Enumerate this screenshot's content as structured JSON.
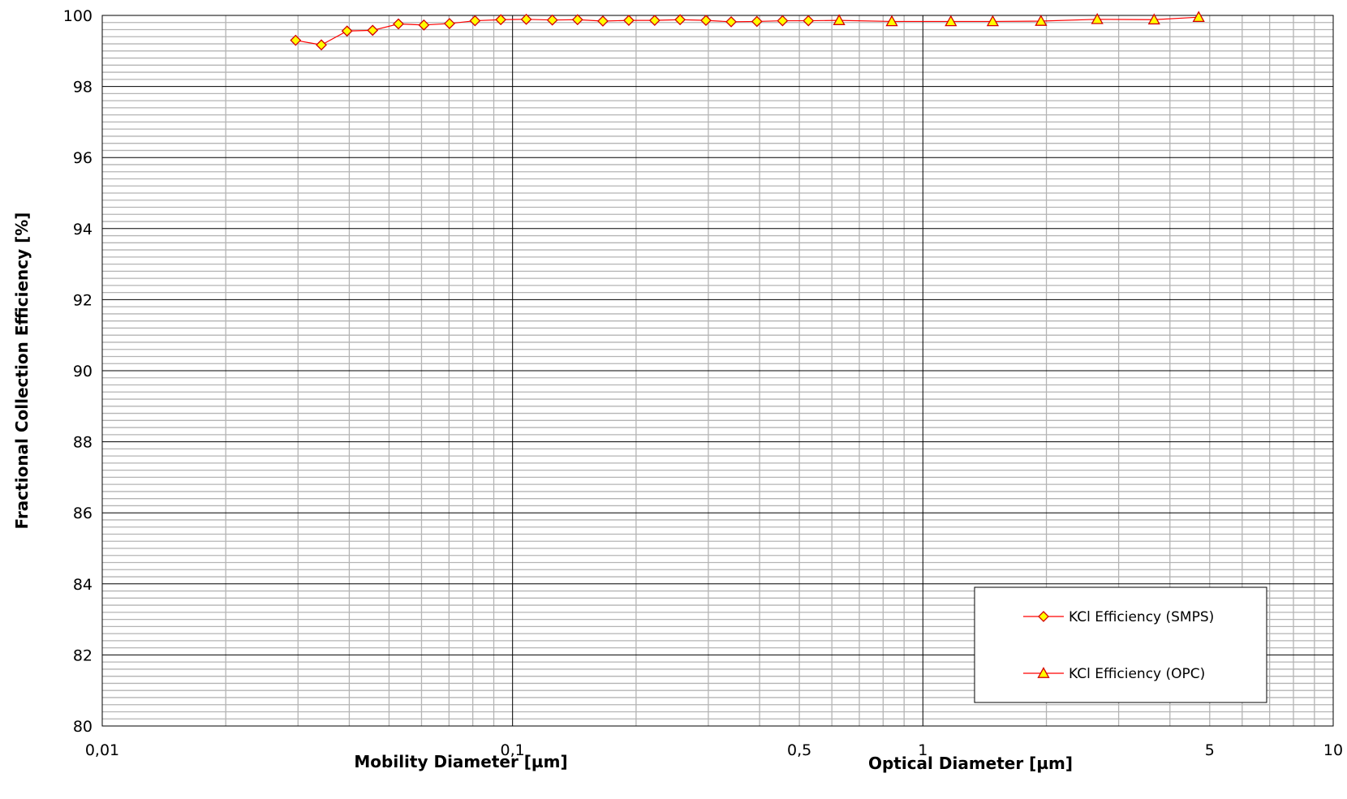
{
  "chart_data": {
    "type": "scatter",
    "title": "",
    "xscale": "log",
    "xlim": [
      0.01,
      10
    ],
    "ylim": [
      80,
      100
    ],
    "ylabel": "Fractional Collection Efficiency [%]",
    "xlabel_left": "Mobility Diameter [µm]",
    "xlabel_right": "Optical Diameter [µm]",
    "x_tick_labels": [
      {
        "value": 0.01,
        "label": "0,01"
      },
      {
        "value": 0.1,
        "label": "0,1"
      },
      {
        "value": 0.5,
        "label": "0,5"
      },
      {
        "value": 1,
        "label": "1"
      },
      {
        "value": 5,
        "label": "5"
      },
      {
        "value": 10,
        "label": "10"
      }
    ],
    "y_ticks": [
      80,
      82,
      84,
      86,
      88,
      90,
      92,
      94,
      96,
      98,
      100
    ],
    "grid": true,
    "legend_position": "bottom-right",
    "colors": {
      "line": "#ff0000",
      "marker_fill": "#ffff00",
      "marker_edge": "#d40000"
    },
    "series": [
      {
        "name": "KCl Efficiency (SMPS)",
        "marker": "diamond",
        "points": [
          {
            "x": 0.0296,
            "y": 99.3
          },
          {
            "x": 0.0342,
            "y": 99.17
          },
          {
            "x": 0.0395,
            "y": 99.56
          },
          {
            "x": 0.0456,
            "y": 99.58
          },
          {
            "x": 0.0527,
            "y": 99.76
          },
          {
            "x": 0.0608,
            "y": 99.73
          },
          {
            "x": 0.0702,
            "y": 99.77
          },
          {
            "x": 0.081,
            "y": 99.85
          },
          {
            "x": 0.0936,
            "y": 99.88
          },
          {
            "x": 0.108,
            "y": 99.89
          },
          {
            "x": 0.125,
            "y": 99.87
          },
          {
            "x": 0.144,
            "y": 99.88
          },
          {
            "x": 0.166,
            "y": 99.84
          },
          {
            "x": 0.192,
            "y": 99.86
          },
          {
            "x": 0.222,
            "y": 99.86
          },
          {
            "x": 0.256,
            "y": 99.88
          },
          {
            "x": 0.296,
            "y": 99.86
          },
          {
            "x": 0.341,
            "y": 99.82
          },
          {
            "x": 0.394,
            "y": 99.83
          },
          {
            "x": 0.455,
            "y": 99.85
          },
          {
            "x": 0.526,
            "y": 99.85
          }
        ]
      },
      {
        "name": "KCl Efficiency (OPC)",
        "marker": "triangle",
        "points": [
          {
            "x": 0.625,
            "y": 99.86
          },
          {
            "x": 0.84,
            "y": 99.83
          },
          {
            "x": 1.17,
            "y": 99.83
          },
          {
            "x": 1.48,
            "y": 99.83
          },
          {
            "x": 1.94,
            "y": 99.84
          },
          {
            "x": 2.66,
            "y": 99.89
          },
          {
            "x": 3.66,
            "y": 99.88
          },
          {
            "x": 4.7,
            "y": 99.95
          }
        ]
      }
    ]
  }
}
